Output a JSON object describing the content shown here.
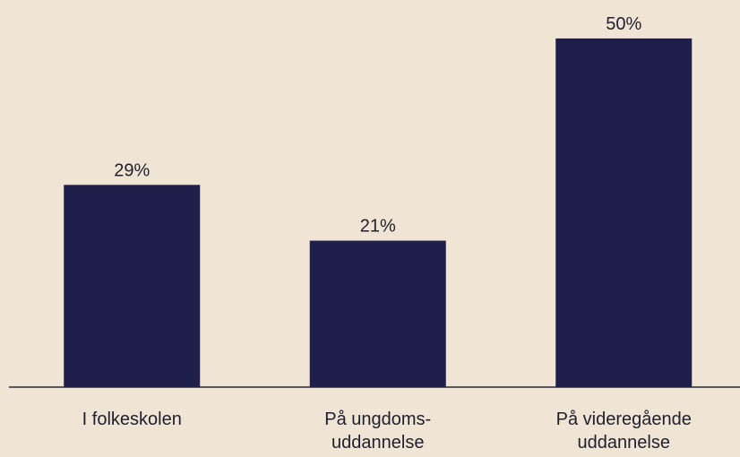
{
  "chart_data": {
    "type": "bar",
    "categories": [
      "I folkeskolen",
      "På ungdoms-\nuddannelse",
      "På videregående\nuddannelse"
    ],
    "values": [
      29,
      21,
      50
    ],
    "value_labels": [
      "29%",
      "21%",
      "50%"
    ],
    "color": "#1f1f4b",
    "ylim": [
      0,
      55
    ]
  }
}
